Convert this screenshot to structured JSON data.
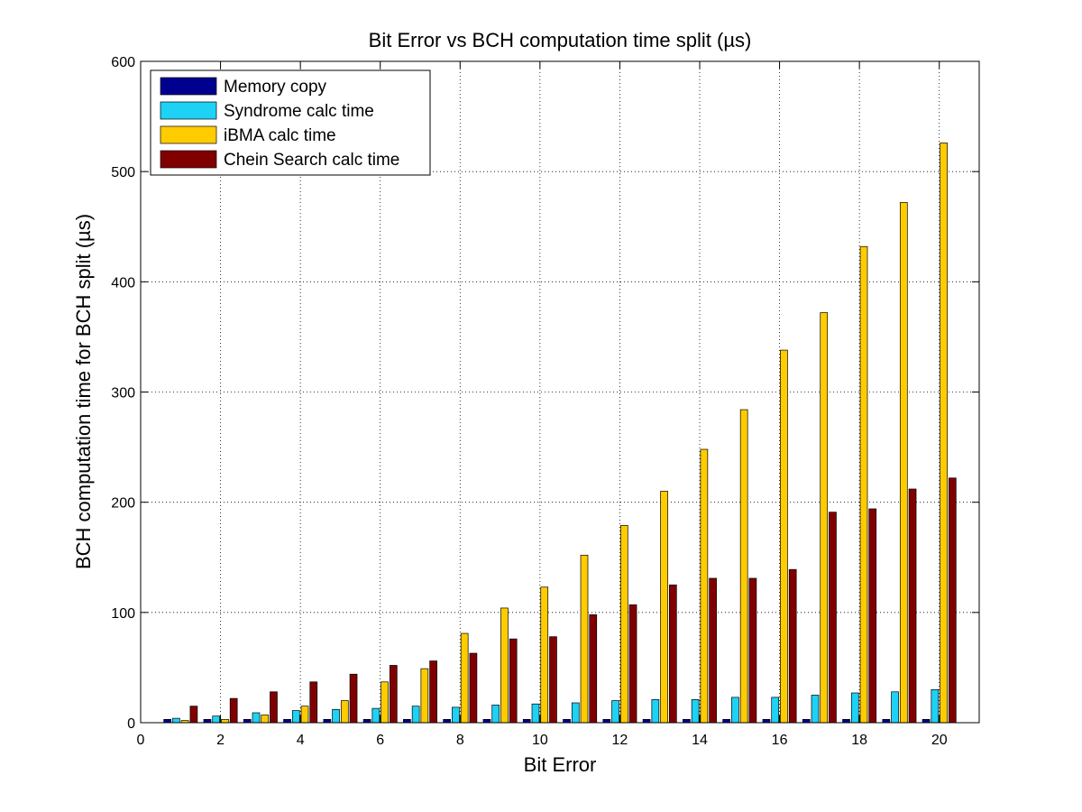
{
  "chart_data": {
    "type": "bar",
    "title": "Bit Error vs BCH computation time split (µs)",
    "xlabel": "Bit Error",
    "ylabel": "BCH computation time for BCH split (µs)",
    "xlim": [
      0,
      21
    ],
    "ylim": [
      0,
      600
    ],
    "xticks": [
      0,
      2,
      4,
      6,
      8,
      10,
      12,
      14,
      16,
      18,
      20
    ],
    "yticks": [
      0,
      100,
      200,
      300,
      400,
      500,
      600
    ],
    "grid": true,
    "legend_position": "top-left",
    "x": [
      1,
      2,
      3,
      4,
      5,
      6,
      7,
      8,
      9,
      10,
      11,
      12,
      13,
      14,
      15,
      16,
      17,
      18,
      19,
      20
    ],
    "series": [
      {
        "name": "Memory copy",
        "color": "#00008f",
        "values": [
          3,
          3,
          3,
          3,
          3,
          3,
          3,
          3,
          3,
          3,
          3,
          3,
          3,
          3,
          3,
          3,
          3,
          3,
          3,
          3
        ]
      },
      {
        "name": "Syndrome calc time",
        "color": "#1ed2f5",
        "values": [
          4,
          6,
          9,
          11,
          12,
          13,
          15,
          14,
          16,
          17,
          18,
          20,
          21,
          21,
          23,
          23,
          25,
          27,
          28,
          30
        ]
      },
      {
        "name": "iBMA calc time",
        "color": "#ffcc00",
        "values": [
          2,
          3,
          7,
          15,
          20,
          37,
          49,
          81,
          104,
          123,
          152,
          179,
          210,
          248,
          284,
          338,
          372,
          432,
          472,
          526
        ]
      },
      {
        "name": "Chein Search calc time",
        "color": "#800000",
        "values": [
          15,
          22,
          28,
          37,
          44,
          52,
          56,
          63,
          76,
          78,
          98,
          107,
          125,
          131,
          131,
          139,
          191,
          194,
          212,
          222
        ]
      }
    ]
  }
}
